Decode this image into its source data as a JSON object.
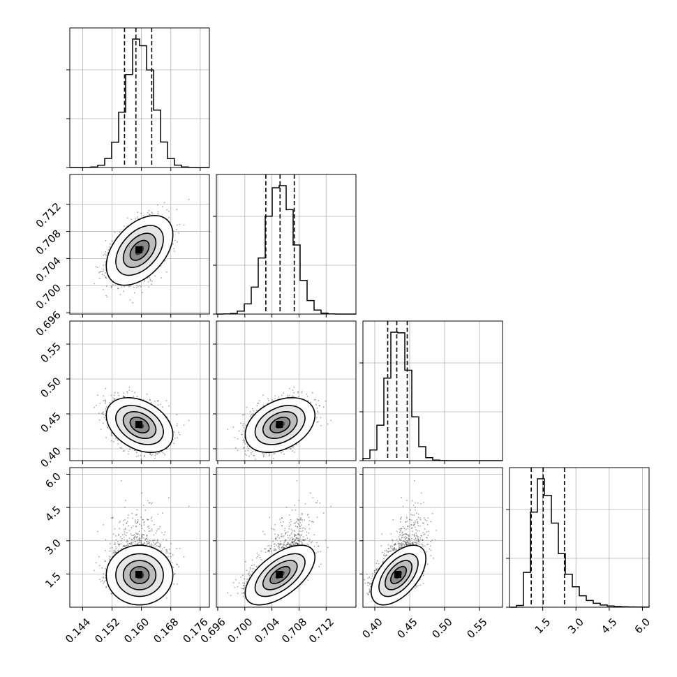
{
  "chart_data": {
    "type": "corner",
    "grid": true,
    "parameters": [
      {
        "index": 0,
        "range": [
          0.1405,
          0.1785
        ],
        "mean": 0.1595,
        "sd": 0.0037,
        "skew": false,
        "quantiles": [
          0.1554,
          0.1585,
          0.1628
        ],
        "ticks": [
          0.144,
          0.152,
          0.16,
          0.168,
          0.176
        ],
        "tick_labels": [
          "0.144",
          "0.152",
          "0.160",
          "0.168",
          "0.176"
        ]
      },
      {
        "index": 1,
        "range": [
          0.6958,
          0.7164
        ],
        "mean": 0.7052,
        "sd": 0.0021,
        "skew": false,
        "quantiles": [
          0.7031,
          0.7052,
          0.7073
        ],
        "ticks": [
          0.696,
          0.7,
          0.704,
          0.708,
          0.712
        ],
        "tick_labels": [
          "0.696",
          "0.700",
          "0.704",
          "0.708",
          "0.712"
        ]
      },
      {
        "index": 2,
        "range": [
          0.383,
          0.583
        ],
        "mean": 0.434,
        "sd": 0.016,
        "skew": false,
        "quantiles": [
          0.4185,
          0.4315,
          0.4465
        ],
        "ticks": [
          0.4,
          0.45,
          0.5,
          0.55
        ],
        "tick_labels": [
          "0.40",
          "0.45",
          "0.50",
          "0.55"
        ]
      },
      {
        "index": 3,
        "range": [
          0.0,
          6.3
        ],
        "mean": 1.7,
        "sd": 0.6,
        "skew": true,
        "quantiles": [
          0.98,
          1.52,
          2.48
        ],
        "ticks": [
          1.5,
          3.0,
          4.5,
          6.0
        ],
        "tick_labels": [
          "1.5",
          "3.0",
          "4.5",
          "6.0"
        ]
      }
    ],
    "correlations": [
      {
        "x": 0,
        "y": 1,
        "rho": 0.45
      },
      {
        "x": 0,
        "y": 2,
        "rho": -0.35
      },
      {
        "x": 1,
        "y": 2,
        "rho": 0.35
      },
      {
        "x": 0,
        "y": 3,
        "rho": 0.0
      },
      {
        "x": 1,
        "y": 3,
        "rho": 0.6
      },
      {
        "x": 2,
        "y": 3,
        "rho": 0.55
      }
    ]
  }
}
